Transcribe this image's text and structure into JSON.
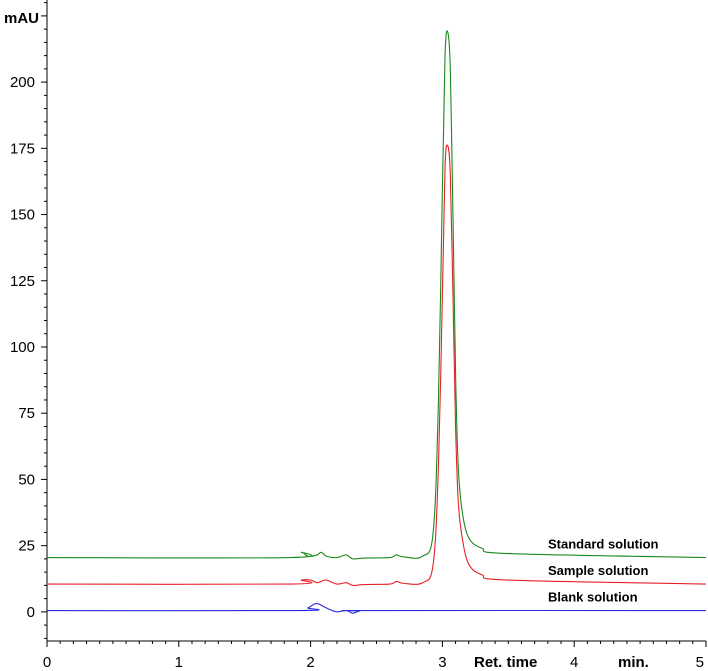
{
  "chart_data": {
    "type": "line",
    "ylabel": "mAU",
    "xlabel": "Ret. time",
    "xunit": "min.",
    "xlim": [
      0,
      5
    ],
    "ylim": [
      -11,
      231
    ],
    "x_ticks": [
      "0",
      "1",
      "2",
      "3",
      "4",
      "5"
    ],
    "y_ticks": [
      "0",
      "25",
      "50",
      "75",
      "100",
      "125",
      "150",
      "175",
      "200"
    ],
    "series": [
      {
        "name": "Standard solution",
        "color": "#1a8a1a",
        "x": [
          0,
          1.85,
          1.93,
          1.98,
          2.05,
          2.08,
          2.12,
          2.2,
          2.27,
          2.32,
          2.4,
          2.6,
          2.65,
          2.7,
          2.85,
          2.93,
          2.97,
          3.0,
          3.02,
          3.04,
          3.06,
          3.08,
          3.1,
          3.12,
          3.15,
          3.2,
          3.3,
          3.5,
          5.0
        ],
        "values": [
          20.5,
          20.5,
          22.5,
          21.0,
          21.5,
          22.5,
          21.0,
          20.5,
          21.5,
          20.0,
          20.3,
          20.5,
          21.5,
          20.8,
          21.0,
          30.0,
          80.0,
          160.0,
          210.0,
          219.0,
          205.0,
          150.0,
          90.0,
          55.0,
          38.0,
          28.0,
          24.0,
          22.0,
          20.5
        ]
      },
      {
        "name": "Sample solution",
        "color": "#e8202a",
        "x": [
          0,
          1.85,
          1.93,
          2.0,
          2.05,
          2.08,
          2.12,
          2.2,
          2.27,
          2.32,
          2.4,
          2.6,
          2.65,
          2.7,
          2.85,
          2.93,
          2.97,
          3.0,
          3.02,
          3.04,
          3.06,
          3.08,
          3.1,
          3.12,
          3.15,
          3.2,
          3.3,
          3.5,
          5.0
        ],
        "values": [
          10.5,
          10.5,
          12.0,
          12.0,
          11.0,
          11.5,
          12.0,
          10.5,
          11.0,
          10.0,
          10.3,
          10.5,
          11.5,
          10.8,
          11.0,
          18.0,
          55.0,
          120.0,
          168.0,
          176.0,
          165.0,
          120.0,
          70.0,
          42.0,
          28.0,
          18.0,
          14.0,
          12.0,
          10.5
        ]
      },
      {
        "name": "Blank solution",
        "color": "#2a2ae0",
        "x": [
          0,
          1.9,
          1.98,
          2.03,
          2.06,
          2.1,
          2.15,
          2.2,
          2.27,
          2.32,
          2.37,
          2.45,
          5.0
        ],
        "values": [
          0.5,
          0.5,
          1.5,
          3.0,
          3.0,
          2.0,
          0.8,
          0.0,
          0.5,
          -0.5,
          0.3,
          0.5,
          0.5
        ]
      }
    ]
  }
}
